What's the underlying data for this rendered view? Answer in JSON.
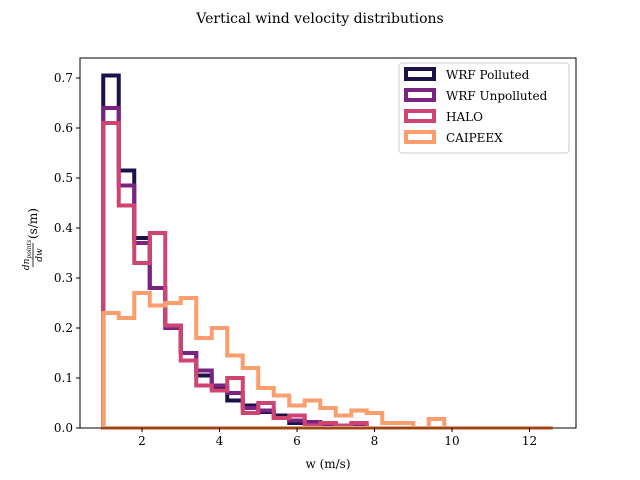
{
  "chart_data": {
    "type": "histogram-step",
    "title": "Vertical wind velocity distributions",
    "xlabel": "w (m/s)",
    "ylabel_main": "dn",
    "ylabel_sub": "points",
    "ylabel_den": "dw",
    "ylabel_unit": "(s/m)",
    "xlim": [
      0.4,
      13.2
    ],
    "ylim": [
      0.0,
      0.74
    ],
    "xticks": [
      2,
      4,
      6,
      8,
      10,
      12
    ],
    "yticks": [
      0.0,
      0.1,
      0.2,
      0.3,
      0.4,
      0.5,
      0.6,
      0.7
    ],
    "legend_position": "top-right",
    "grid": false,
    "series": [
      {
        "name": "WRF Polluted",
        "color": "#1d1147",
        "edges": [
          1.0,
          1.4,
          1.8,
          2.2,
          2.6,
          3.0,
          3.4,
          3.8,
          4.2,
          4.6,
          5.0,
          5.4,
          5.8,
          6.2,
          6.6,
          7.0,
          7.4,
          7.8
        ],
        "values": [
          0.705,
          0.515,
          0.38,
          0.28,
          0.205,
          0.15,
          0.105,
          0.08,
          0.055,
          0.045,
          0.032,
          0.025,
          0.01,
          0.01,
          0.008,
          0.005,
          0.003
        ]
      },
      {
        "name": "WRF Unpolluted",
        "color": "#7a2382",
        "edges": [
          1.0,
          1.4,
          1.8,
          2.2,
          2.6,
          3.0,
          3.4,
          3.8,
          4.2,
          4.6,
          5.0,
          5.4,
          5.8,
          6.2,
          6.6,
          7.0,
          7.4,
          7.8
        ],
        "values": [
          0.64,
          0.485,
          0.37,
          0.28,
          0.2,
          0.15,
          0.115,
          0.085,
          0.07,
          0.04,
          0.035,
          0.02,
          0.015,
          0.012,
          0.008,
          0.005,
          0.003
        ]
      },
      {
        "name": "HALO",
        "color": "#d04470",
        "edges": [
          1.0,
          1.4,
          1.8,
          2.2,
          2.6,
          3.0,
          3.4,
          3.8,
          4.2,
          4.6,
          5.0,
          5.4,
          5.8,
          6.2,
          6.6,
          7.0,
          7.4,
          7.8
        ],
        "values": [
          0.61,
          0.445,
          0.33,
          0.39,
          0.205,
          0.135,
          0.085,
          0.075,
          0.1,
          0.03,
          0.05,
          0.02,
          0.025,
          0.005,
          0.01,
          0.005,
          0.01
        ]
      },
      {
        "name": "CAIPEEX",
        "color": "#fb9d6c",
        "edges": [
          1.0,
          1.4,
          1.8,
          2.2,
          2.6,
          3.0,
          3.4,
          3.8,
          4.2,
          4.6,
          5.0,
          5.4,
          5.8,
          6.2,
          6.6,
          7.0,
          7.4,
          7.8,
          8.2,
          8.6,
          9.0,
          9.4,
          9.8,
          10.2,
          10.6,
          11.0,
          11.4,
          11.8,
          12.2,
          12.6
        ],
        "values": [
          0.23,
          0.22,
          0.27,
          0.245,
          0.25,
          0.26,
          0.18,
          0.2,
          0.145,
          0.12,
          0.08,
          0.065,
          0.045,
          0.055,
          0.04,
          0.025,
          0.035,
          0.03,
          0.01,
          0.01,
          0.0,
          0.018,
          0.0,
          0.0,
          0.0,
          0.0,
          0.0,
          0.0,
          0.0
        ]
      }
    ]
  }
}
